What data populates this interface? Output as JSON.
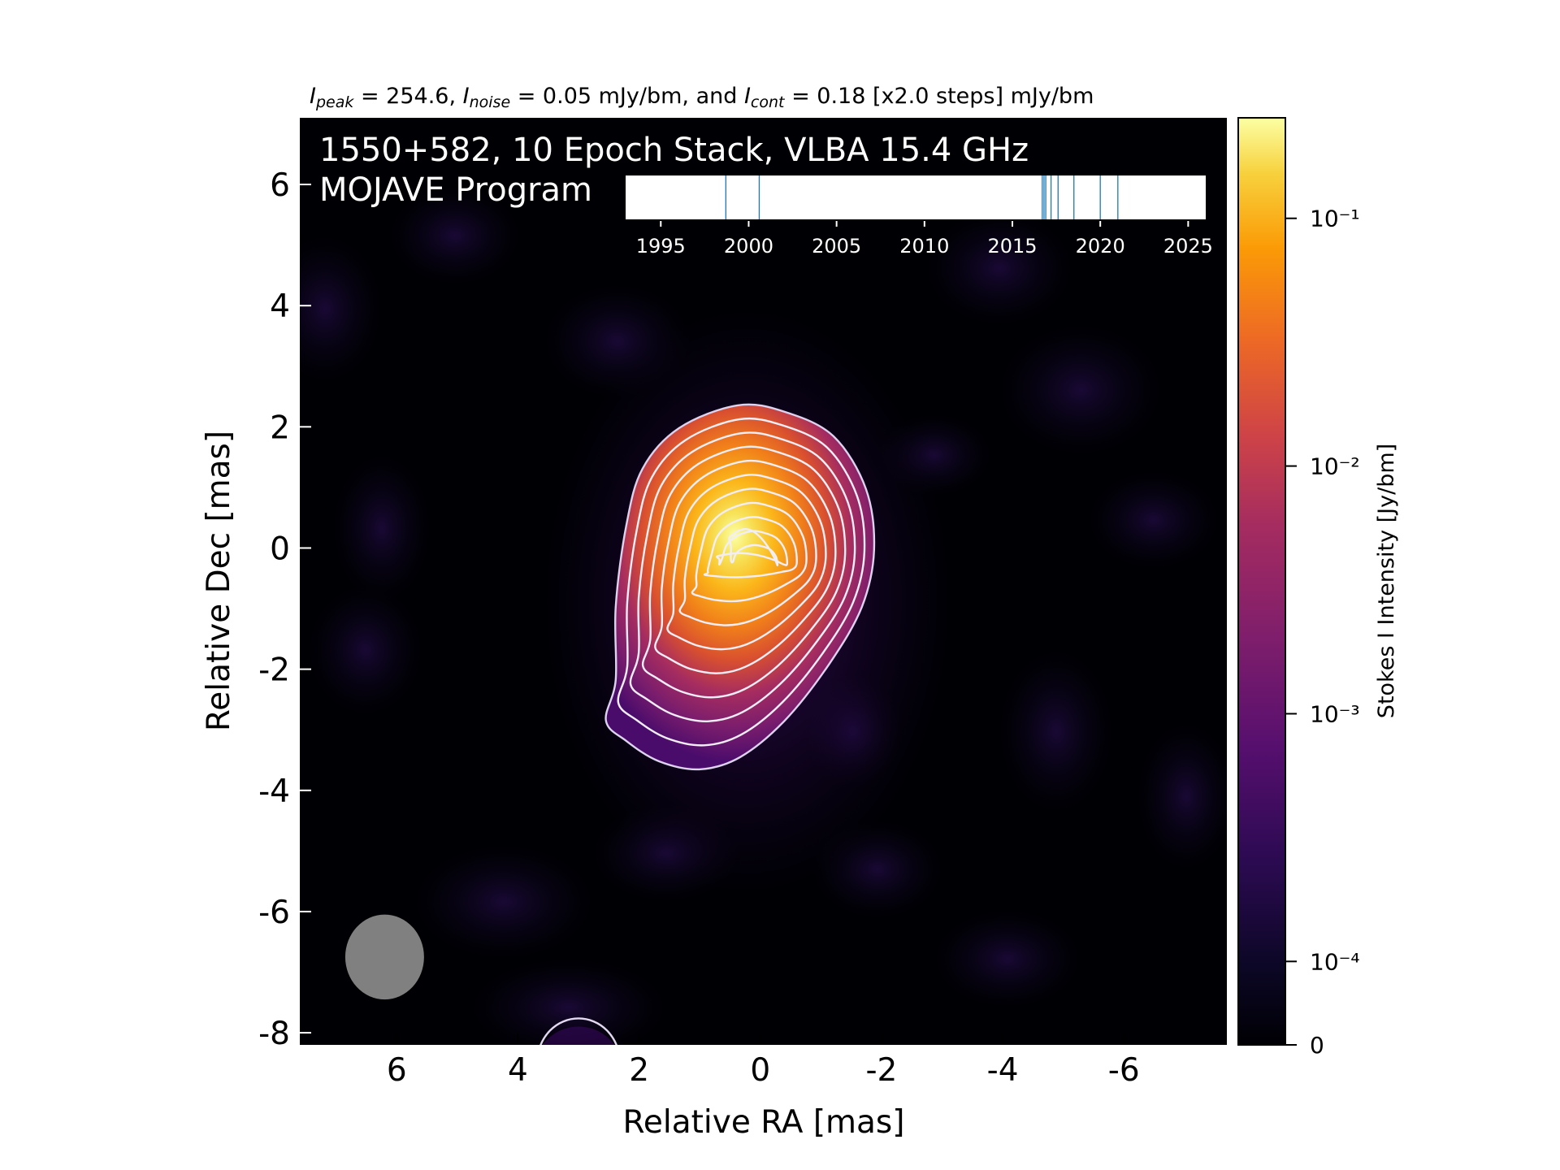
{
  "chart_data": {
    "type": "heatmap",
    "header": {
      "segments": [
        {
          "text": "I",
          "italic": true
        },
        {
          "text": "peak",
          "italic": true,
          "sub": true
        },
        {
          "text": " = 254.6, ",
          "italic": false
        },
        {
          "text": "I",
          "italic": true
        },
        {
          "text": "noise",
          "italic": true,
          "sub": true
        },
        {
          "text": " = 0.05 mJy/bm, and ",
          "italic": false
        },
        {
          "text": "I",
          "italic": true
        },
        {
          "text": "cont",
          "italic": true,
          "sub": true
        },
        {
          "text": " = 0.18 [x2.0 steps] mJy/bm",
          "italic": false
        }
      ]
    },
    "title_line1": "1550+582, 10 Epoch Stack, VLBA 15.4 GHz",
    "title_line2": "MOJAVE Program",
    "xlabel": "Relative RA [mas]",
    "ylabel": "Relative Dec [mas]",
    "xlim": [
      7.6,
      -7.7
    ],
    "ylim": [
      -8.2,
      7.1
    ],
    "xticks": [
      6,
      4,
      2,
      0,
      -2,
      -4,
      -6
    ],
    "xtick_labels": [
      "6",
      "4",
      "2",
      "0",
      "-2",
      "-4",
      "-6"
    ],
    "yticks": [
      6,
      4,
      2,
      0,
      -2,
      -4,
      -6,
      -8
    ],
    "ytick_labels": [
      "6",
      "4",
      "2",
      "0",
      "-2",
      "-4",
      "-6",
      "-8"
    ],
    "contour_levels_mjy": [
      0.18,
      0.36,
      0.72,
      1.44,
      2.88,
      5.76,
      11.52,
      23.04,
      46.08,
      92.16,
      184.32
    ],
    "peak_mjy": 254.6,
    "peak_position": [
      0.0,
      -0.3
    ],
    "secondary_contour_center": [
      3.0,
      -8.3
    ],
    "beam": {
      "x": 6.2,
      "y": -6.75,
      "major_mas": 1.4,
      "minor_mas": 1.3,
      "color": "#808080"
    },
    "colorbar": {
      "label": "Stokes I Intensity [Jy/bm]",
      "ticks": [
        0,
        0.0001,
        0.001,
        0.01,
        0.1
      ],
      "tick_labels": [
        "0",
        "10⁻⁴",
        "10⁻³",
        "10⁻²",
        "10⁻¹"
      ],
      "colormap": "inferno",
      "scale": "symlog"
    },
    "epoch_timeline": {
      "xlim": [
        1993,
        2026
      ],
      "ticks": [
        1995,
        2000,
        2005,
        2010,
        2015,
        2020,
        2025
      ],
      "tick_labels": [
        "1995",
        "2000",
        "2005",
        "2010",
        "2015",
        "2020",
        "2025"
      ],
      "epochs": [
        1998.7,
        2000.6,
        2016.7,
        2016.9,
        2017.2,
        2017.6,
        2018.5,
        2020.0,
        2021.0,
        2016.8
      ],
      "line_color": "#1f77b4"
    }
  }
}
